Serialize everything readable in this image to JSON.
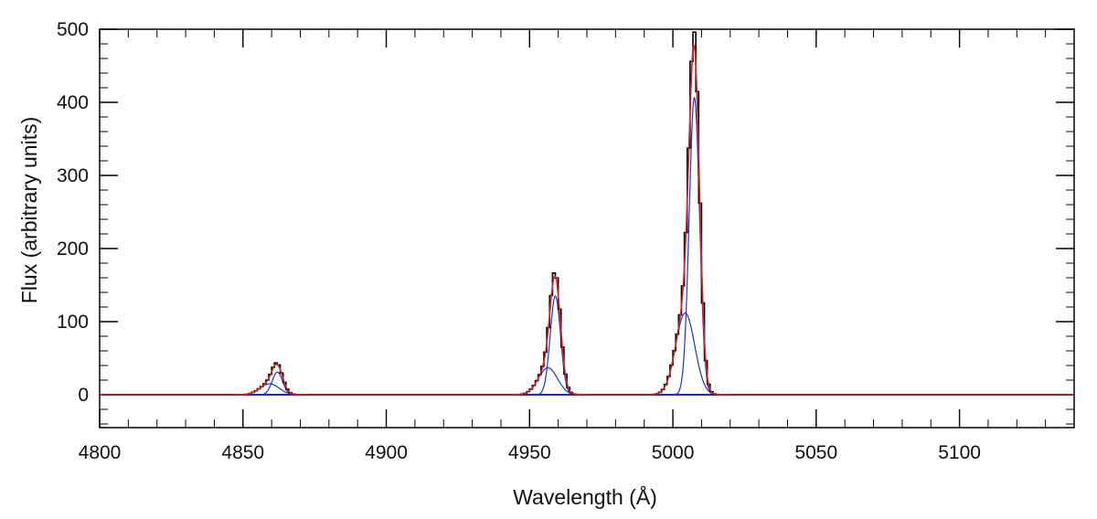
{
  "chart_data": {
    "type": "line",
    "title": "",
    "xlabel": "Wavelength (Å)",
    "ylabel": "Flux (arbitrary units)",
    "xlim": [
      4800,
      5140
    ],
    "ylim": [
      -45,
      500
    ],
    "xticks": [
      4800,
      4850,
      4900,
      4950,
      5000,
      5050,
      5100
    ],
    "yticks": [
      0,
      100,
      200,
      300,
      400,
      500
    ],
    "grid": false,
    "legend": "none",
    "colors": {
      "observed": "#000000",
      "model": "#cc2a2a",
      "components": "#2233cc",
      "zero_line": "#000000"
    },
    "components": [
      {
        "center": 4859.3,
        "amplitude": 15,
        "sigma": 3.3
      },
      {
        "center": 4862.0,
        "amplitude": 31,
        "sigma": 1.8
      },
      {
        "center": 4956.4,
        "amplitude": 37,
        "sigma": 3.3
      },
      {
        "center": 4959.0,
        "amplitude": 135,
        "sigma": 1.8
      },
      {
        "center": 5004.3,
        "amplitude": 112,
        "sigma": 3.3
      },
      {
        "center": 5007.5,
        "amplitude": 407,
        "sigma": 1.8
      }
    ],
    "observed_bin_width": 1.0
  }
}
